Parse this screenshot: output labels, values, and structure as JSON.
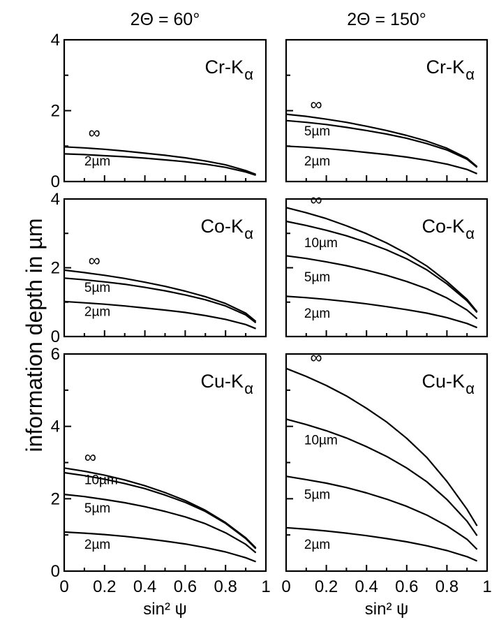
{
  "figure": {
    "ylabel": "information depth in µm"
  },
  "chart_data": [
    {
      "type": "line",
      "title": "2Θ = 60°",
      "panel_label": "Cr-K",
      "subscript": "α",
      "xlabel": "",
      "xlim": [
        0,
        1
      ],
      "ylim": [
        0,
        4
      ],
      "yticks": [
        0,
        2,
        4
      ],
      "xticks": [],
      "series": [
        {
          "name": "∞",
          "x": [
            0,
            0.1,
            0.2,
            0.3,
            0.4,
            0.5,
            0.6,
            0.7,
            0.8,
            0.9,
            0.95
          ],
          "y": [
            0.98,
            0.95,
            0.91,
            0.86,
            0.8,
            0.74,
            0.67,
            0.58,
            0.47,
            0.31,
            0.2
          ]
        },
        {
          "name": "2µm",
          "x": [
            0,
            0.1,
            0.2,
            0.3,
            0.4,
            0.5,
            0.6,
            0.7,
            0.8,
            0.9,
            0.95
          ],
          "y": [
            0.78,
            0.76,
            0.73,
            0.7,
            0.66,
            0.61,
            0.56,
            0.49,
            0.4,
            0.27,
            0.18
          ]
        }
      ],
      "labels": [
        {
          "text": "∞",
          "x": 0.12,
          "y": 1.22
        },
        {
          "text": "2µm",
          "x": 0.1,
          "y": 0.45
        }
      ]
    },
    {
      "type": "line",
      "title": "2Θ = 150°",
      "panel_label": "Cr-K",
      "subscript": "α",
      "xlabel": "",
      "xlim": [
        0,
        1
      ],
      "ylim": [
        0,
        4
      ],
      "yticks": [],
      "xticks": [],
      "series": [
        {
          "name": "∞",
          "x": [
            0,
            0.1,
            0.2,
            0.3,
            0.4,
            0.5,
            0.6,
            0.7,
            0.8,
            0.9,
            0.95
          ],
          "y": [
            1.9,
            1.84,
            1.76,
            1.67,
            1.56,
            1.44,
            1.3,
            1.14,
            0.94,
            0.66,
            0.42
          ]
        },
        {
          "name": "5µm",
          "x": [
            0,
            0.1,
            0.2,
            0.3,
            0.4,
            0.5,
            0.6,
            0.7,
            0.8,
            0.9,
            0.95
          ],
          "y": [
            1.72,
            1.67,
            1.61,
            1.53,
            1.44,
            1.34,
            1.22,
            1.07,
            0.89,
            0.63,
            0.4
          ]
        },
        {
          "name": "2µm",
          "x": [
            0,
            0.1,
            0.2,
            0.3,
            0.4,
            0.5,
            0.6,
            0.7,
            0.8,
            0.9,
            0.95
          ],
          "y": [
            1.0,
            0.97,
            0.93,
            0.88,
            0.82,
            0.76,
            0.69,
            0.6,
            0.49,
            0.34,
            0.22
          ]
        }
      ],
      "labels": [
        {
          "text": "∞",
          "x": 0.12,
          "y": 2.02
        },
        {
          "text": "5µm",
          "x": 0.09,
          "y": 1.3
        },
        {
          "text": "2µm",
          "x": 0.09,
          "y": 0.45
        }
      ]
    },
    {
      "type": "line",
      "title": "",
      "panel_label": "Co-K",
      "subscript": "α",
      "xlabel": "",
      "xlim": [
        0,
        1
      ],
      "ylim": [
        0,
        4
      ],
      "yticks": [
        0,
        2,
        4
      ],
      "xticks": [],
      "series": [
        {
          "name": "∞",
          "x": [
            0,
            0.1,
            0.2,
            0.3,
            0.4,
            0.5,
            0.6,
            0.7,
            0.8,
            0.9,
            0.95
          ],
          "y": [
            1.93,
            1.86,
            1.78,
            1.69,
            1.58,
            1.46,
            1.32,
            1.16,
            0.96,
            0.68,
            0.44
          ]
        },
        {
          "name": "5µm",
          "x": [
            0,
            0.1,
            0.2,
            0.3,
            0.4,
            0.5,
            0.6,
            0.7,
            0.8,
            0.9,
            0.95
          ],
          "y": [
            1.7,
            1.65,
            1.59,
            1.52,
            1.43,
            1.33,
            1.21,
            1.07,
            0.89,
            0.63,
            0.4
          ]
        },
        {
          "name": "2µm",
          "x": [
            0,
            0.1,
            0.2,
            0.3,
            0.4,
            0.5,
            0.6,
            0.7,
            0.8,
            0.9,
            0.95
          ],
          "y": [
            1.02,
            0.98,
            0.94,
            0.89,
            0.83,
            0.77,
            0.7,
            0.61,
            0.5,
            0.35,
            0.23
          ]
        }
      ],
      "labels": [
        {
          "text": "∞",
          "x": 0.12,
          "y": 2.05
        },
        {
          "text": "5µm",
          "x": 0.1,
          "y": 1.3
        },
        {
          "text": "2µm",
          "x": 0.1,
          "y": 0.6
        }
      ]
    },
    {
      "type": "line",
      "title": "",
      "panel_label": "Co-K",
      "subscript": "α",
      "xlabel": "",
      "xlim": [
        0,
        1
      ],
      "ylim": [
        0,
        4
      ],
      "yticks": [],
      "xticks": [],
      "series": [
        {
          "name": "∞",
          "x": [
            0,
            0.1,
            0.2,
            0.3,
            0.4,
            0.5,
            0.6,
            0.7,
            0.8,
            0.9,
            0.95
          ],
          "y": [
            3.75,
            3.6,
            3.43,
            3.22,
            2.99,
            2.72,
            2.41,
            2.05,
            1.6,
            1.08,
            0.72
          ]
        },
        {
          "name": "10µm",
          "x": [
            0,
            0.1,
            0.2,
            0.3,
            0.4,
            0.5,
            0.6,
            0.7,
            0.8,
            0.9,
            0.95
          ],
          "y": [
            3.35,
            3.23,
            3.09,
            2.93,
            2.74,
            2.52,
            2.26,
            1.94,
            1.53,
            1.04,
            0.7
          ]
        },
        {
          "name": "5µm",
          "x": [
            0,
            0.1,
            0.2,
            0.3,
            0.4,
            0.5,
            0.6,
            0.7,
            0.8,
            0.9,
            0.95
          ],
          "y": [
            2.35,
            2.27,
            2.17,
            2.06,
            1.93,
            1.78,
            1.6,
            1.39,
            1.12,
            0.77,
            0.52
          ]
        },
        {
          "name": "2µm",
          "x": [
            0,
            0.1,
            0.2,
            0.3,
            0.4,
            0.5,
            0.6,
            0.7,
            0.8,
            0.9,
            0.95
          ],
          "y": [
            1.17,
            1.13,
            1.08,
            1.02,
            0.95,
            0.87,
            0.78,
            0.68,
            0.55,
            0.38,
            0.26
          ]
        }
      ],
      "labels": [
        {
          "text": "∞",
          "x": 0.12,
          "y": 3.82
        },
        {
          "text": "10µm",
          "x": 0.09,
          "y": 2.6
        },
        {
          "text": "5µm",
          "x": 0.09,
          "y": 1.6
        },
        {
          "text": "2µm",
          "x": 0.09,
          "y": 0.55
        }
      ]
    },
    {
      "type": "line",
      "title": "",
      "panel_label": "Cu-K",
      "subscript": "α",
      "xlabel": "sin² ψ",
      "xlim": [
        0,
        1
      ],
      "ylim": [
        0,
        6
      ],
      "yticks": [
        0,
        2,
        4,
        6
      ],
      "xticks": [
        "0",
        "0.2",
        "0.4",
        "0.6",
        "0.8",
        "1"
      ],
      "series": [
        {
          "name": "∞",
          "x": [
            0,
            0.1,
            0.2,
            0.3,
            0.4,
            0.5,
            0.6,
            0.7,
            0.8,
            0.9,
            0.95
          ],
          "y": [
            2.85,
            2.76,
            2.65,
            2.52,
            2.36,
            2.17,
            1.95,
            1.68,
            1.34,
            0.92,
            0.64
          ]
        },
        {
          "name": "10µm",
          "x": [
            0,
            0.1,
            0.2,
            0.3,
            0.4,
            0.5,
            0.6,
            0.7,
            0.8,
            0.9,
            0.95
          ],
          "y": [
            2.72,
            2.64,
            2.54,
            2.42,
            2.28,
            2.1,
            1.9,
            1.65,
            1.32,
            0.9,
            0.62
          ]
        },
        {
          "name": "5µm",
          "x": [
            0,
            0.1,
            0.2,
            0.3,
            0.4,
            0.5,
            0.6,
            0.7,
            0.8,
            0.9,
            0.95
          ],
          "y": [
            2.12,
            2.06,
            1.98,
            1.89,
            1.78,
            1.65,
            1.5,
            1.31,
            1.06,
            0.74,
            0.51
          ]
        },
        {
          "name": "2µm",
          "x": [
            0,
            0.1,
            0.2,
            0.3,
            0.4,
            0.5,
            0.6,
            0.7,
            0.8,
            0.9,
            0.95
          ],
          "y": [
            1.08,
            1.05,
            1.01,
            0.96,
            0.9,
            0.83,
            0.75,
            0.65,
            0.53,
            0.37,
            0.26
          ]
        }
      ],
      "labels": [
        {
          "text": "∞",
          "x": 0.1,
          "y": 3.0
        },
        {
          "text": "10µm",
          "x": 0.1,
          "y": 2.4
        },
        {
          "text": "5µm",
          "x": 0.1,
          "y": 1.62
        },
        {
          "text": "2µm",
          "x": 0.1,
          "y": 0.62
        }
      ]
    },
    {
      "type": "line",
      "title": "",
      "panel_label": "Cu-K",
      "subscript": "α",
      "xlabel": "sin² ψ",
      "xlim": [
        0,
        1
      ],
      "ylim": [
        0,
        6
      ],
      "yticks": [],
      "xticks": [
        "0",
        "0.2",
        "0.4",
        "0.6",
        "0.8",
        "1"
      ],
      "series": [
        {
          "name": "∞",
          "x": [
            0,
            0.1,
            0.2,
            0.3,
            0.4,
            0.5,
            0.6,
            0.7,
            0.8,
            0.9,
            0.95
          ],
          "y": [
            5.6,
            5.38,
            5.13,
            4.84,
            4.5,
            4.12,
            3.67,
            3.14,
            2.48,
            1.71,
            1.25
          ]
        },
        {
          "name": "10µm",
          "x": [
            0,
            0.1,
            0.2,
            0.3,
            0.4,
            0.5,
            0.6,
            0.7,
            0.8,
            0.9,
            0.95
          ],
          "y": [
            4.2,
            4.05,
            3.88,
            3.68,
            3.44,
            3.17,
            2.85,
            2.47,
            1.98,
            1.38,
            0.98
          ]
        },
        {
          "name": "5µm",
          "x": [
            0,
            0.1,
            0.2,
            0.3,
            0.4,
            0.5,
            0.6,
            0.7,
            0.8,
            0.9,
            0.95
          ],
          "y": [
            2.62,
            2.53,
            2.43,
            2.31,
            2.16,
            1.99,
            1.79,
            1.55,
            1.25,
            0.88,
            0.6
          ]
        },
        {
          "name": "2µm",
          "x": [
            0,
            0.1,
            0.2,
            0.3,
            0.4,
            0.5,
            0.6,
            0.7,
            0.8,
            0.9,
            0.95
          ],
          "y": [
            1.2,
            1.16,
            1.11,
            1.05,
            0.98,
            0.9,
            0.81,
            0.7,
            0.57,
            0.4,
            0.28
          ]
        }
      ],
      "labels": [
        {
          "text": "∞",
          "x": 0.12,
          "y": 5.75
        },
        {
          "text": "10µm",
          "x": 0.09,
          "y": 3.5
        },
        {
          "text": "5µm",
          "x": 0.09,
          "y": 2.0
        },
        {
          "text": "2µm",
          "x": 0.09,
          "y": 0.62
        }
      ]
    }
  ]
}
